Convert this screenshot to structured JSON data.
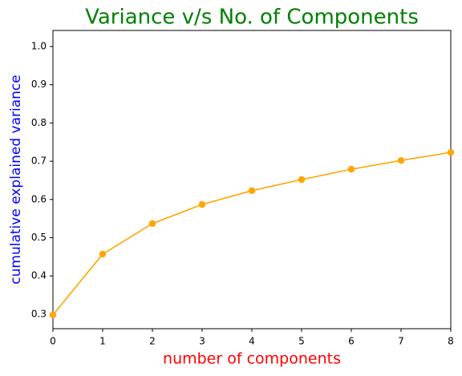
{
  "chart_data": {
    "type": "line",
    "title": "Variance v/s No. of Components",
    "xlabel": "number of components",
    "ylabel": "cumulative explained variance",
    "title_color": "#008000",
    "xlabel_color": "#ff0000",
    "ylabel_color": "#0000ff",
    "x": [
      0,
      1,
      2,
      3,
      4,
      5,
      6,
      7,
      8
    ],
    "series": [
      {
        "color": "#ffa500",
        "values": [
          0.298,
          0.457,
          0.537,
          0.587,
          0.623,
          0.652,
          0.679,
          0.702,
          0.723
        ]
      }
    ],
    "xlim": [
      0,
      8
    ],
    "xticks": [
      0,
      1,
      2,
      3,
      4,
      5,
      6,
      7,
      8
    ],
    "ylim": [
      0.262,
      1.042
    ],
    "yticks": [
      0.3,
      0.4,
      0.5,
      0.6,
      0.7,
      0.8,
      0.9,
      {
        "value": 1,
        "label": "1.0"
      }
    ],
    "grid": false
  }
}
